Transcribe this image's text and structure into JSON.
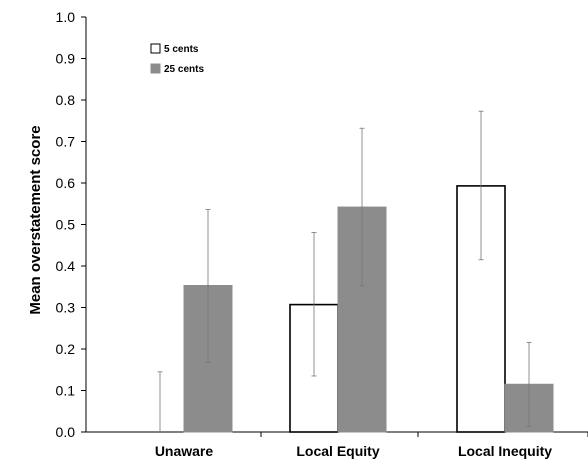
{
  "chart_data": {
    "type": "bar",
    "title": "",
    "xlabel": "",
    "ylabel": "Mean overstatement score",
    "ylim": [
      0,
      1.0
    ],
    "yticks": [
      "0.0",
      "0.1",
      "0.2",
      "0.3",
      "0.4",
      "0.5",
      "0.6",
      "0.7",
      "0.8",
      "0.9",
      "1.0"
    ],
    "categories": [
      "Unaware",
      "Local Equity",
      "Local Inequity"
    ],
    "legend_position": "top-left",
    "grid": false,
    "series": [
      {
        "name": "5 cents",
        "color": "#ffffff",
        "edge_color": "#000000",
        "values": [
          0.0,
          0.307,
          0.593
        ],
        "error_low": [
          0.0,
          0.135,
          0.415
        ],
        "error_high": [
          0.145,
          0.481,
          0.773
        ]
      },
      {
        "name": "25 cents",
        "color": "#8c8c8c",
        "edge_color": "#8c8c8c",
        "values": [
          0.353,
          0.542,
          0.115
        ],
        "error_low": [
          0.168,
          0.352,
          0.013
        ],
        "error_high": [
          0.536,
          0.732,
          0.216
        ]
      }
    ]
  }
}
